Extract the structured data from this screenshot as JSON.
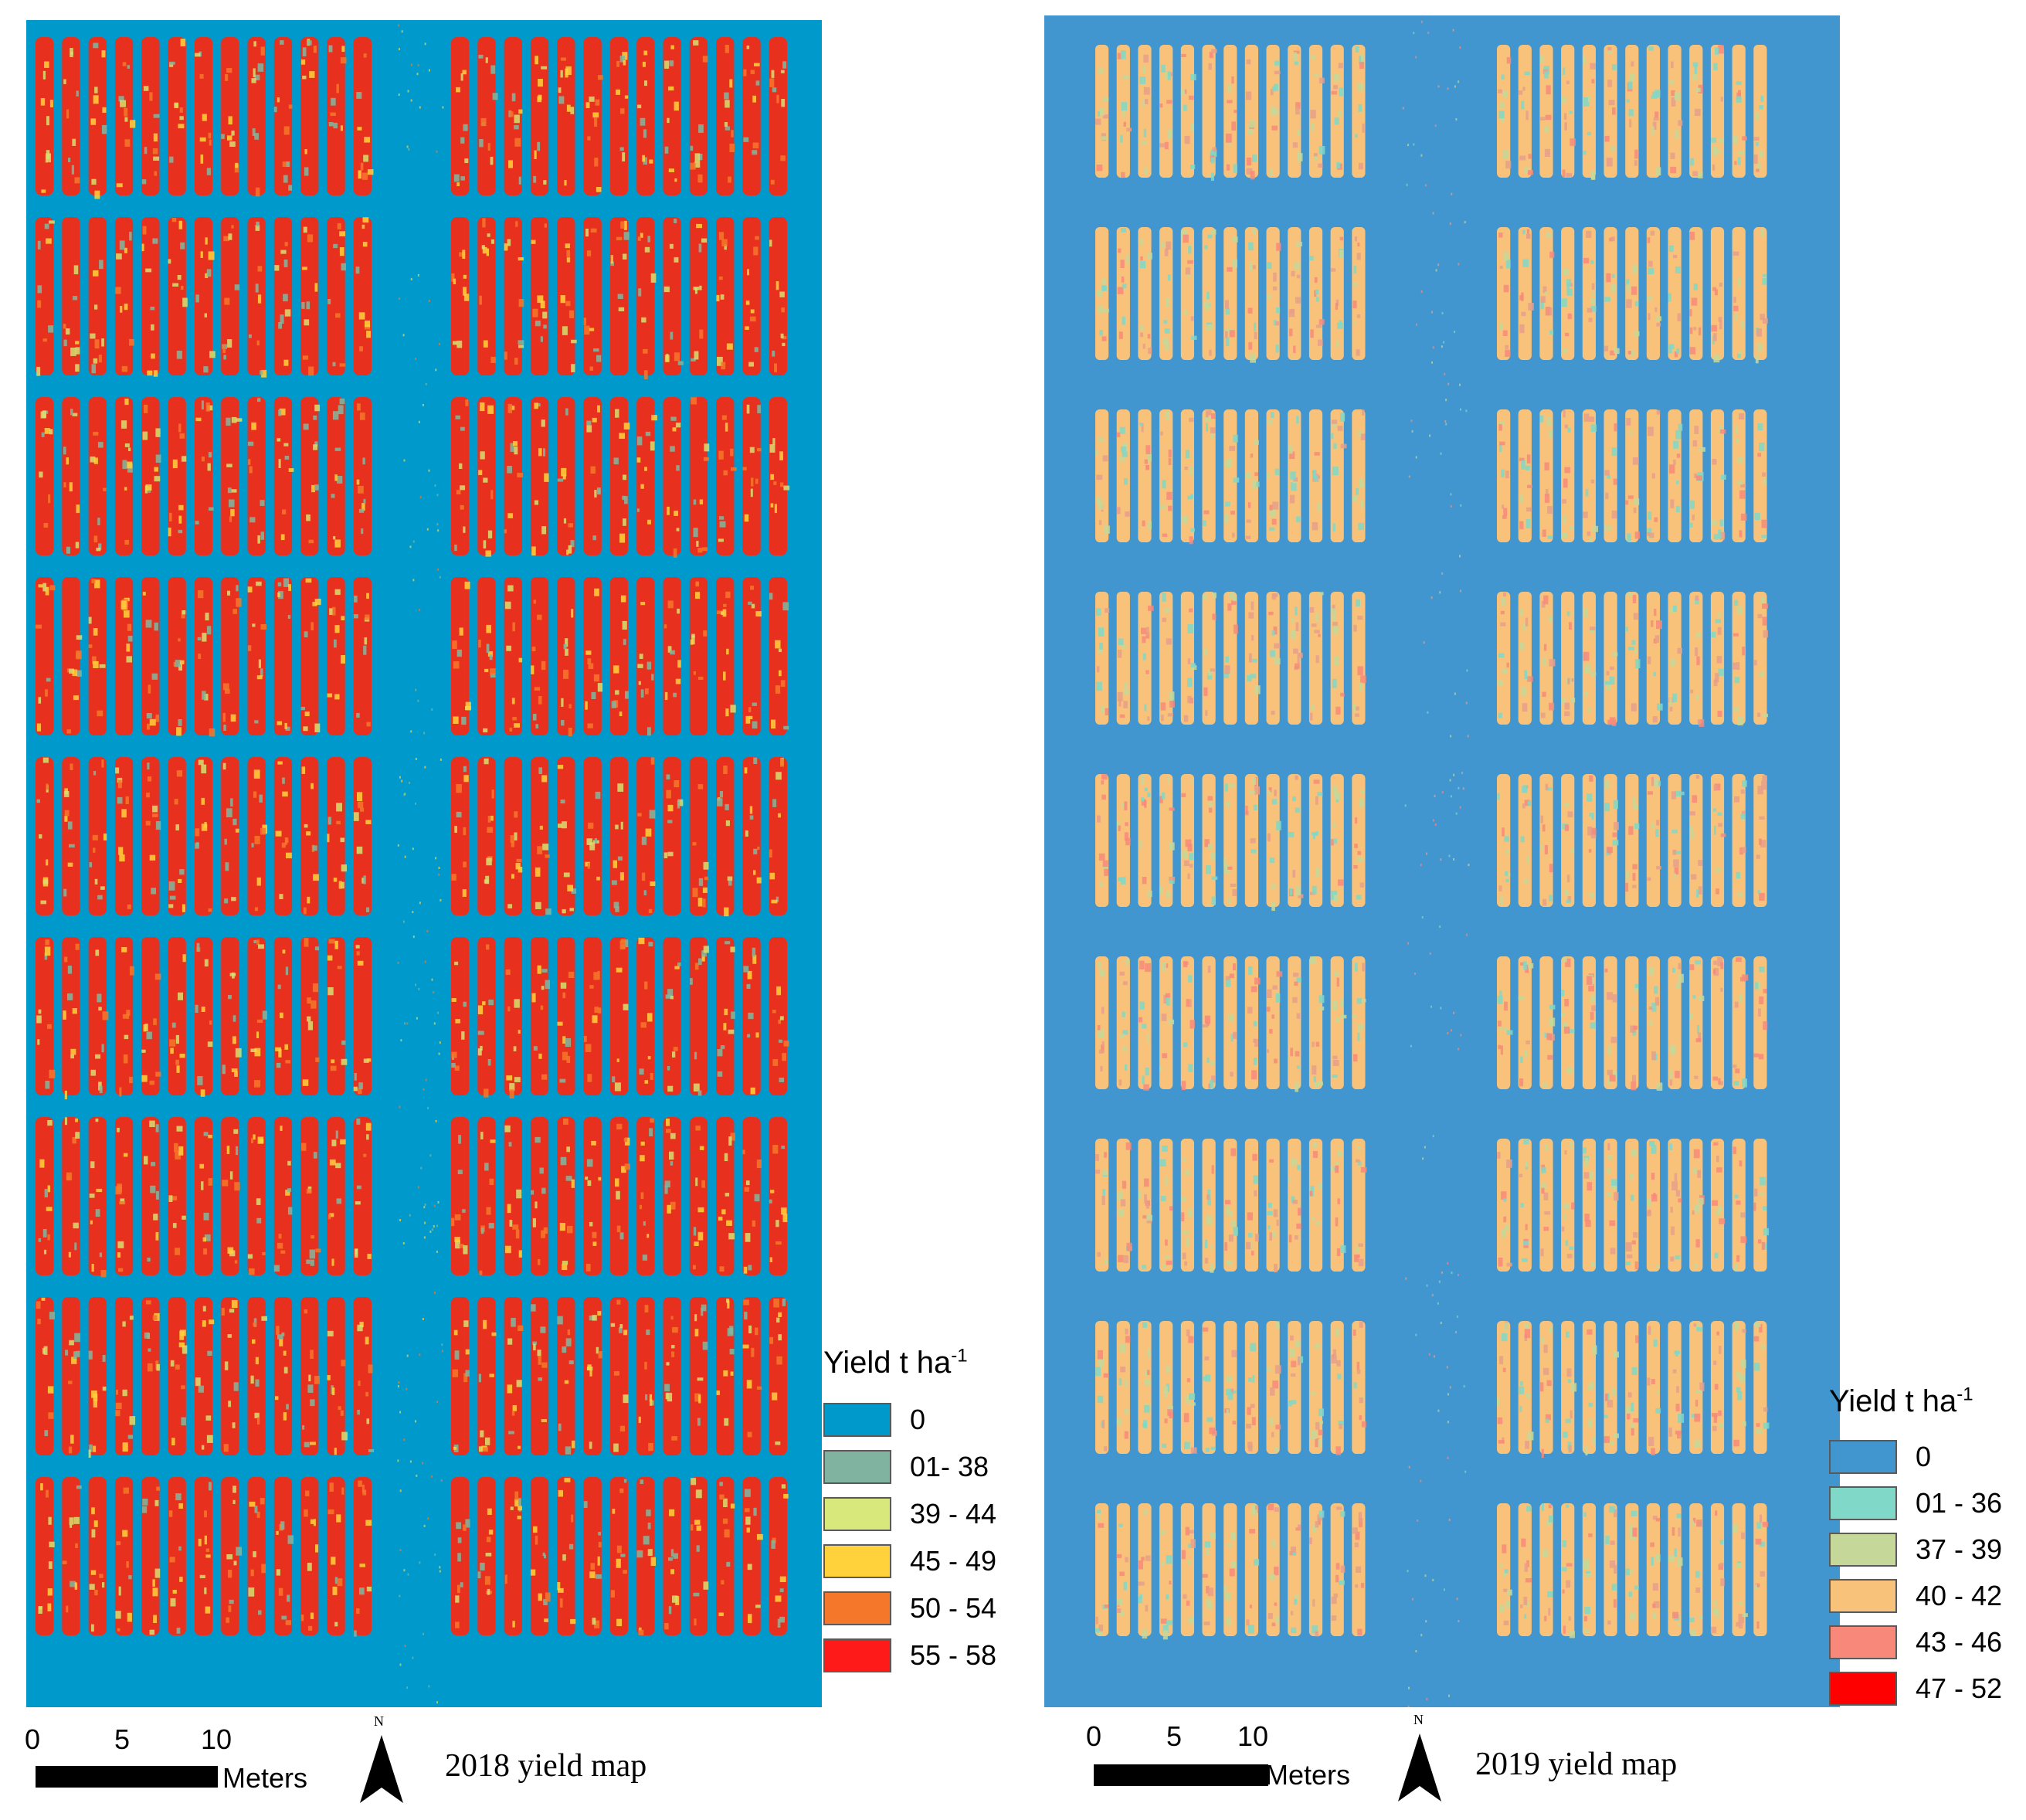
{
  "maps": [
    {
      "id": "2018",
      "caption": "2018 yield map",
      "background_color": "#0099cc",
      "field_color": "#e8301e",
      "speckle_colors": [
        "#ffd23c",
        "#f5772a",
        "#d6e070",
        "#7fb8a0"
      ],
      "block_rows": 9,
      "block_cols": 2,
      "strips_per_block": 13,
      "legend": {
        "title": "Yield t ha",
        "title_superscript": "-1",
        "classes": [
          {
            "label": "0",
            "color": "#0099cc"
          },
          {
            "label": "01- 38",
            "color": "#80b3a0"
          },
          {
            "label": "39 - 44",
            "color": "#d9e87a"
          },
          {
            "label": "45 - 49",
            "color": "#ffd23c"
          },
          {
            "label": "50 - 54",
            "color": "#f5772a"
          },
          {
            "label": "55 - 58",
            "color": "#ff1a1a"
          }
        ]
      },
      "scale_bar": {
        "ticks": [
          "0",
          "5",
          "10"
        ],
        "unit": "Meters"
      },
      "north_label": "N"
    },
    {
      "id": "2019",
      "caption": "2019 yield map",
      "background_color": "#4296d0",
      "field_color": "#f8c27a",
      "speckle_colors": [
        "#f8897a",
        "#c5d89a",
        "#7fd8c8",
        "#e89f8a"
      ],
      "block_rows": 9,
      "block_cols": 2,
      "strips_per_block": 13,
      "legend": {
        "title": "Yield t ha",
        "title_superscript": "-1",
        "classes": [
          {
            "label": "0",
            "color": "#4296d0"
          },
          {
            "label": "01 - 36",
            "color": "#7fd8c8"
          },
          {
            "label": "37 - 39",
            "color": "#c5d89a"
          },
          {
            "label": "40 - 42",
            "color": "#f8c27a"
          },
          {
            "label": "43 - 46",
            "color": "#f8897a"
          },
          {
            "label": "47 - 52",
            "color": "#ff0000"
          }
        ]
      },
      "scale_bar": {
        "ticks": [
          "0",
          "5",
          "10"
        ],
        "unit": "Meters"
      },
      "north_label": "N"
    }
  ]
}
